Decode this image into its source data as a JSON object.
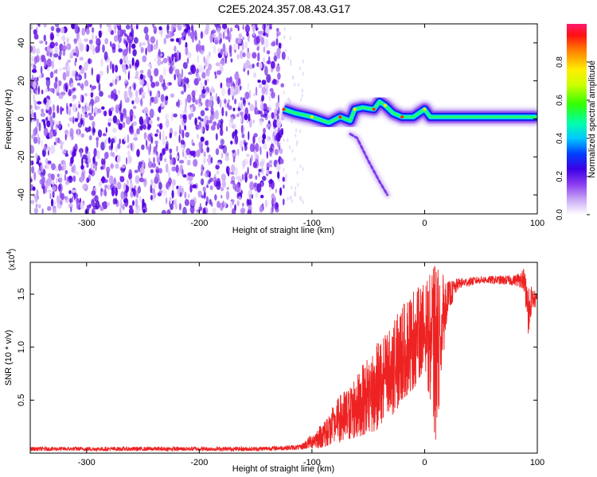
{
  "title": "C2E5.2024.357.08.43.G17",
  "chart_data": [
    {
      "type": "heatmap",
      "xlabel": "Height of straight line (km)",
      "ylabel": "Frequency (Hz)",
      "xlim": [
        -350,
        100
      ],
      "ylim": [
        -50,
        50
      ],
      "xticks": [
        -300,
        -200,
        -100,
        0,
        100
      ],
      "yticks": [
        -40,
        -20,
        0,
        20,
        40
      ],
      "colorbar": {
        "label": "Normalized spectral amplitude",
        "range": [
          0,
          1
        ],
        "ticks": [
          "0.0",
          "0.2",
          "0.4",
          "0.6",
          "0.8"
        ],
        "colors": [
          "#ffffff",
          "#b07cf0",
          "#6a00e8",
          "#0000ff",
          "#00e5ff",
          "#00ff66",
          "#aaff00",
          "#ffff00",
          "#ff8800",
          "#ff0000",
          "#ff1a6e"
        ]
      },
      "signal_track": [
        {
          "x": -125,
          "y": 5
        },
        {
          "x": -115,
          "y": 3
        },
        {
          "x": -100,
          "y": 1
        },
        {
          "x": -85,
          "y": -2
        },
        {
          "x": -75,
          "y": 1
        },
        {
          "x": -66,
          "y": -1
        },
        {
          "x": -62,
          "y": 5
        },
        {
          "x": -55,
          "y": 6
        },
        {
          "x": -45,
          "y": 5
        },
        {
          "x": -40,
          "y": 9
        },
        {
          "x": -35,
          "y": 7
        },
        {
          "x": -28,
          "y": 3
        },
        {
          "x": -20,
          "y": 1
        },
        {
          "x": -10,
          "y": 1
        },
        {
          "x": 0,
          "y": 5
        },
        {
          "x": 5,
          "y": 1
        },
        {
          "x": 20,
          "y": 1
        },
        {
          "x": 60,
          "y": 1
        },
        {
          "x": 100,
          "y": 1
        }
      ],
      "secondary_track": [
        {
          "x": -66,
          "y": -8
        },
        {
          "x": -60,
          "y": -10
        },
        {
          "x": -50,
          "y": -22
        },
        {
          "x": -40,
          "y": -33
        },
        {
          "x": -33,
          "y": -40
        }
      ],
      "noise_region_x": [
        -350,
        -125
      ]
    },
    {
      "type": "line",
      "xlabel": "Height of straight line (km)",
      "ylabel": "SNR (10 * v/v)",
      "scale_label": "(x10",
      "scale_exponent": "4",
      "xlim": [
        -350,
        100
      ],
      "ylim": [
        0,
        1.8
      ],
      "xticks": [
        -300,
        -200,
        -100,
        0,
        100
      ],
      "yticks": [
        0.5,
        1.0,
        1.5
      ],
      "series": [
        {
          "color": "#ee2222",
          "envelope": [
            {
              "x": -350,
              "low": 0.02,
              "high": 0.06
            },
            {
              "x": -150,
              "low": 0.02,
              "high": 0.06
            },
            {
              "x": -110,
              "low": 0.03,
              "high": 0.08
            },
            {
              "x": -90,
              "low": 0.05,
              "high": 0.3
            },
            {
              "x": -75,
              "low": 0.1,
              "high": 0.55
            },
            {
              "x": -60,
              "low": 0.15,
              "high": 0.75
            },
            {
              "x": -45,
              "low": 0.2,
              "high": 1.0
            },
            {
              "x": -30,
              "low": 0.3,
              "high": 1.2
            },
            {
              "x": -20,
              "low": 0.5,
              "high": 1.4
            },
            {
              "x": -10,
              "low": 0.6,
              "high": 1.55
            },
            {
              "x": 0,
              "low": 0.8,
              "high": 1.6
            },
            {
              "x": 10,
              "low": 0.1,
              "high": 1.8
            },
            {
              "x": 20,
              "low": 1.3,
              "high": 1.62
            },
            {
              "x": 30,
              "low": 1.55,
              "high": 1.65
            },
            {
              "x": 50,
              "low": 1.6,
              "high": 1.67
            },
            {
              "x": 80,
              "low": 1.58,
              "high": 1.68
            },
            {
              "x": 88,
              "low": 1.55,
              "high": 1.75
            },
            {
              "x": 92,
              "low": 1.05,
              "high": 1.6
            },
            {
              "x": 95,
              "low": 1.35,
              "high": 1.58
            },
            {
              "x": 100,
              "low": 1.38,
              "high": 1.5
            }
          ]
        }
      ]
    }
  ]
}
